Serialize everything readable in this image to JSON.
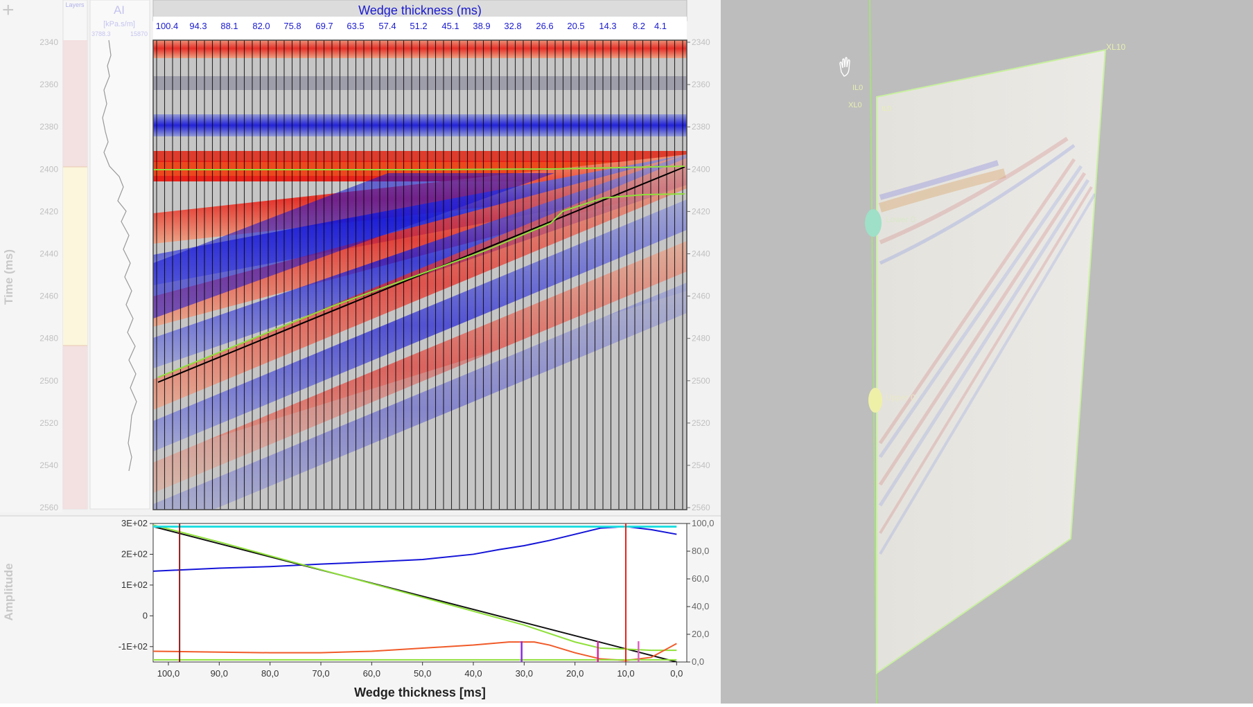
{
  "app": {
    "title": "Wedge thickness (ms)",
    "corner_glyph": "+"
  },
  "tracks": {
    "layers": {
      "label": "Layers"
    },
    "ai": {
      "label": "AI",
      "unit": "[kPa.s/m]",
      "min": "3788.3",
      "max": "15870"
    }
  },
  "seismic": {
    "top_ticks": [
      "100.4",
      "94.3",
      "88.1",
      "82.0",
      "75.8",
      "69.7",
      "63.5",
      "57.4",
      "51.2",
      "45.1",
      "38.9",
      "32.8",
      "26.6",
      "20.5",
      "14.3",
      "8.2",
      "4.1"
    ],
    "time_label": "Time (ms)",
    "time_ticks": [
      "2340",
      "2360",
      "2380",
      "2400",
      "2420",
      "2440",
      "2460",
      "2480",
      "2500",
      "2520",
      "2540",
      "2560"
    ]
  },
  "amplitude_panel": {
    "ylabel": "Amplitude",
    "left_ticks": [
      "3E+02",
      "2E+02",
      "1E+02",
      "0",
      "-1E+02"
    ],
    "right_ticks": [
      "100,0",
      "80,0",
      "60,0",
      "40,0",
      "20,0",
      "0,0"
    ],
    "x_ticks": [
      "100,0",
      "90,0",
      "80,0",
      "70,0",
      "60,0",
      "50,0",
      "40,0",
      "30,0",
      "20,0",
      "10,0",
      "0,0"
    ],
    "xlabel": "Wedge thickness [ms]"
  },
  "view3d": {
    "labels": {
      "xl_top_right": "XL10",
      "il_top_left": "IL0",
      "xl_top_left": "XL0",
      "il_small": "IL0",
      "lower": "Lower 0",
      "upper": "Upper 0"
    }
  },
  "colors": {
    "red": "#e8221a",
    "blue": "#1414d8",
    "green_line": "#8fe03a",
    "cyan": "#22dde0",
    "orange": "#f05a28",
    "dark_red": "#8b1a1a",
    "tick_blue": "#1a1ad0"
  },
  "chart_data": {
    "type": "line",
    "xlabel": "Wedge thickness [ms]",
    "ylabel": "Amplitude",
    "xlim": [
      103,
      -2
    ],
    "ylim": [
      -150,
      300
    ],
    "y2lim": [
      0,
      100
    ],
    "series": [
      {
        "axis": "left",
        "x": [
          103,
          90,
          80,
          70,
          60,
          50,
          40,
          35,
          30,
          25,
          20,
          15,
          10,
          5,
          0
        ],
        "values": [
          145,
          155,
          160,
          168,
          175,
          183,
          200,
          215,
          228,
          245,
          265,
          285,
          290,
          280,
          265
        ]
      },
      {
        "axis": "left",
        "x": [
          103,
          0
        ],
        "values": [
          290,
          -150
        ]
      },
      {
        "axis": "left",
        "x": [
          103,
          90,
          70,
          50,
          30,
          20,
          15,
          10,
          5,
          0
        ],
        "values": [
          295,
          240,
          150,
          60,
          -30,
          -85,
          -105,
          -108,
          -112,
          -112
        ]
      },
      {
        "axis": "left",
        "x": [
          103,
          0
        ],
        "values": [
          290,
          290
        ]
      },
      {
        "axis": "left",
        "x": [
          103,
          90,
          80,
          70,
          60,
          50,
          40,
          33,
          28,
          25,
          20,
          15,
          10,
          5,
          0
        ],
        "values": [
          -115,
          -118,
          -120,
          -120,
          -115,
          -105,
          -95,
          -85,
          -85,
          -95,
          -120,
          -140,
          -145,
          -135,
          -90
        ]
      },
      {
        "axis": "left",
        "x": [
          103,
          0
        ],
        "values": [
          -143,
          -143
        ]
      }
    ],
    "vlines": [
      {
        "x": 97.8,
        "color": "dark_red"
      },
      {
        "x": 10.0,
        "color": "red"
      }
    ]
  }
}
